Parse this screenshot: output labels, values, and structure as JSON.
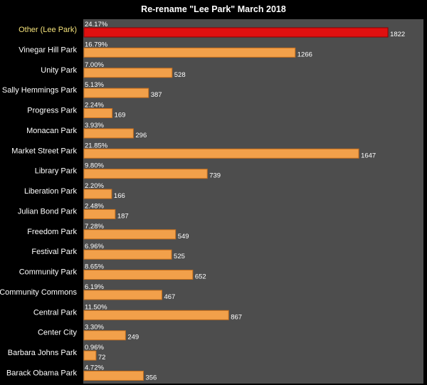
{
  "chart_data": {
    "type": "bar",
    "orientation": "horizontal",
    "title": "Re-rename \"Lee Park\" March 2018",
    "xlabel": "",
    "ylabel": "",
    "xlim": [
      0,
      1860
    ],
    "grid": false,
    "legend": "none",
    "categories": [
      "Other (Lee Park)",
      "Vinegar Hill Park",
      "Unity Park",
      "Sally Hemmings Park",
      "Progress Park",
      "Monacan Park",
      "Market Street Park",
      "Library Park",
      "Liberation Park",
      "Julian Bond Park",
      "Freedom Park",
      "Festival Park",
      "Community Park",
      "Community Commons",
      "Central Park",
      "Center City",
      "Barbara Johns Park",
      "Barack Obama Park"
    ],
    "values": [
      1822,
      1266,
      528,
      387,
      169,
      296,
      1647,
      739,
      166,
      187,
      549,
      525,
      652,
      467,
      867,
      249,
      72,
      356
    ],
    "percent_labels": [
      "24.17%",
      "16.79%",
      "7.00%",
      "5.13%",
      "2.24%",
      "3.93%",
      "21.85%",
      "9.80%",
      "2.20%",
      "2.48%",
      "7.28%",
      "6.96%",
      "8.65%",
      "6.19%",
      "11.50%",
      "3.30%",
      "0.96%",
      "4.72%"
    ],
    "highlight_index": 0
  },
  "colors": {
    "page_background": "#000000",
    "plot_background": "#4d4d4d",
    "bar_fill": "#f2a04a",
    "bar_stroke": "#c66f1d",
    "highlight_fill": "#e01010",
    "highlight_stroke": "#8a0000",
    "text": "#ffffff",
    "highlight_label": "#f4e27a"
  }
}
